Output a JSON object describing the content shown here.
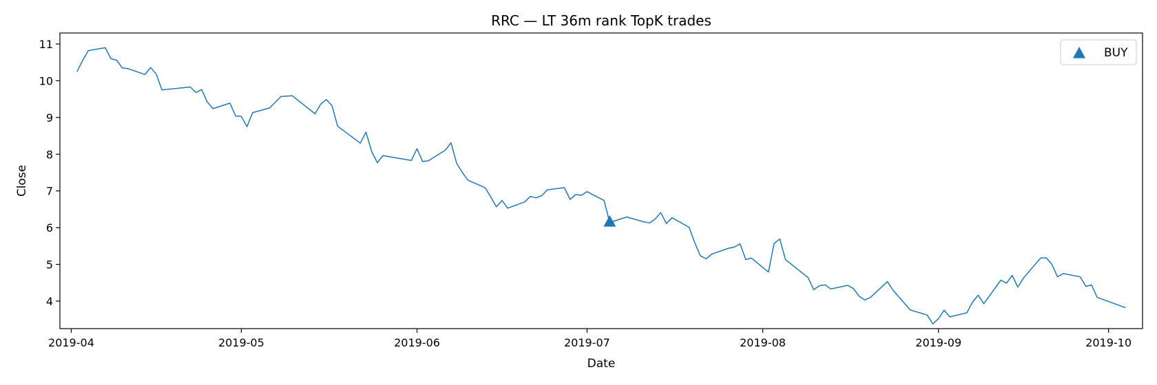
{
  "chart_data": {
    "type": "line",
    "title": "RRC — LT 36m rank TopK trades",
    "xlabel": "Date",
    "ylabel": "Close",
    "xlim": [
      "2019-03-30",
      "2019-10-07"
    ],
    "ylim": [
      3.25,
      11.3
    ],
    "x_ticks": [
      "2019-04-01",
      "2019-05-01",
      "2019-06-01",
      "2019-07-01",
      "2019-08-01",
      "2019-09-01",
      "2019-10-01"
    ],
    "x_tick_labels": [
      "2019-04",
      "2019-05",
      "2019-06",
      "2019-07",
      "2019-08",
      "2019-09",
      "2019-10"
    ],
    "y_ticks": [
      4,
      5,
      6,
      7,
      8,
      9,
      10,
      11
    ],
    "y_tick_labels": [
      "4",
      "5",
      "6",
      "7",
      "8",
      "9",
      "10",
      "11"
    ],
    "grid": false,
    "legend": {
      "position": "top-right",
      "entries": [
        {
          "label": "BUY",
          "marker": "triangle-up"
        }
      ]
    },
    "series": [
      {
        "color": "#1f77b4",
        "points": [
          [
            "2019-04-02",
            10.24
          ],
          [
            "2019-04-03",
            10.55
          ],
          [
            "2019-04-04",
            10.82
          ],
          [
            "2019-04-07",
            10.9
          ],
          [
            "2019-04-08",
            10.6
          ],
          [
            "2019-04-09",
            10.56
          ],
          [
            "2019-04-10",
            10.35
          ],
          [
            "2019-04-11",
            10.33
          ],
          [
            "2019-04-14",
            10.17
          ],
          [
            "2019-04-15",
            10.36
          ],
          [
            "2019-04-16",
            10.18
          ],
          [
            "2019-04-17",
            9.75
          ],
          [
            "2019-04-22",
            9.83
          ],
          [
            "2019-04-23",
            9.68
          ],
          [
            "2019-04-24",
            9.76
          ],
          [
            "2019-04-25",
            9.42
          ],
          [
            "2019-04-26",
            9.24
          ],
          [
            "2019-04-29",
            9.39
          ],
          [
            "2019-04-30",
            9.04
          ],
          [
            "2019-05-01",
            9.03
          ],
          [
            "2019-05-02",
            8.75
          ],
          [
            "2019-05-03",
            9.13
          ],
          [
            "2019-05-06",
            9.26
          ],
          [
            "2019-05-08",
            9.57
          ],
          [
            "2019-05-10",
            9.59
          ],
          [
            "2019-05-14",
            9.1
          ],
          [
            "2019-05-15",
            9.36
          ],
          [
            "2019-05-16",
            9.49
          ],
          [
            "2019-05-17",
            9.32
          ],
          [
            "2019-05-18",
            8.76
          ],
          [
            "2019-05-22",
            8.3
          ],
          [
            "2019-05-23",
            8.6
          ],
          [
            "2019-05-24",
            8.07
          ],
          [
            "2019-05-25",
            7.77
          ],
          [
            "2019-05-26",
            7.96
          ],
          [
            "2019-05-31",
            7.83
          ],
          [
            "2019-06-01",
            8.15
          ],
          [
            "2019-06-02",
            7.8
          ],
          [
            "2019-06-03",
            7.82
          ],
          [
            "2019-06-06",
            8.11
          ],
          [
            "2019-06-07",
            8.31
          ],
          [
            "2019-06-08",
            7.75
          ],
          [
            "2019-06-09",
            7.5
          ],
          [
            "2019-06-10",
            7.29
          ],
          [
            "2019-06-13",
            7.09
          ],
          [
            "2019-06-14",
            6.84
          ],
          [
            "2019-06-15",
            6.57
          ],
          [
            "2019-06-16",
            6.74
          ],
          [
            "2019-06-17",
            6.53
          ],
          [
            "2019-06-20",
            6.7
          ],
          [
            "2019-06-21",
            6.85
          ],
          [
            "2019-06-22",
            6.81
          ],
          [
            "2019-06-23",
            6.87
          ],
          [
            "2019-06-24",
            7.03
          ],
          [
            "2019-06-27",
            7.09
          ],
          [
            "2019-06-28",
            6.77
          ],
          [
            "2019-06-29",
            6.9
          ],
          [
            "2019-06-30",
            6.88
          ],
          [
            "2019-07-01",
            6.98
          ],
          [
            "2019-07-04",
            6.74
          ],
          [
            "2019-07-05",
            6.14
          ],
          [
            "2019-07-08",
            6.29
          ],
          [
            "2019-07-11",
            6.16
          ],
          [
            "2019-07-12",
            6.13
          ],
          [
            "2019-07-13",
            6.23
          ],
          [
            "2019-07-14",
            6.41
          ],
          [
            "2019-07-15",
            6.11
          ],
          [
            "2019-07-16",
            6.27
          ],
          [
            "2019-07-19",
            6.01
          ],
          [
            "2019-07-20",
            5.59
          ],
          [
            "2019-07-21",
            5.23
          ],
          [
            "2019-07-22",
            5.15
          ],
          [
            "2019-07-23",
            5.28
          ],
          [
            "2019-07-26",
            5.44
          ],
          [
            "2019-07-27",
            5.47
          ],
          [
            "2019-07-28",
            5.56
          ],
          [
            "2019-07-29",
            5.13
          ],
          [
            "2019-07-30",
            5.17
          ],
          [
            "2019-08-02",
            4.79
          ],
          [
            "2019-08-03",
            5.57
          ],
          [
            "2019-08-04",
            5.69
          ],
          [
            "2019-08-05",
            5.13
          ],
          [
            "2019-08-09",
            4.64
          ],
          [
            "2019-08-10",
            4.31
          ],
          [
            "2019-08-11",
            4.42
          ],
          [
            "2019-08-12",
            4.44
          ],
          [
            "2019-08-13",
            4.33
          ],
          [
            "2019-08-16",
            4.43
          ],
          [
            "2019-08-17",
            4.34
          ],
          [
            "2019-08-18",
            4.13
          ],
          [
            "2019-08-19",
            4.03
          ],
          [
            "2019-08-20",
            4.1
          ],
          [
            "2019-08-23",
            4.53
          ],
          [
            "2019-08-24",
            4.29
          ],
          [
            "2019-08-27",
            3.76
          ],
          [
            "2019-08-30",
            3.62
          ],
          [
            "2019-08-31",
            3.38
          ],
          [
            "2019-09-01",
            3.52
          ],
          [
            "2019-09-02",
            3.75
          ],
          [
            "2019-09-03",
            3.57
          ],
          [
            "2019-09-06",
            3.68
          ],
          [
            "2019-09-07",
            3.97
          ],
          [
            "2019-09-08",
            4.16
          ],
          [
            "2019-09-09",
            3.93
          ],
          [
            "2019-09-12",
            4.57
          ],
          [
            "2019-09-13",
            4.49
          ],
          [
            "2019-09-14",
            4.7
          ],
          [
            "2019-09-15",
            4.38
          ],
          [
            "2019-09-16",
            4.63
          ],
          [
            "2019-09-19",
            5.17
          ],
          [
            "2019-09-20",
            5.18
          ],
          [
            "2019-09-21",
            5.0
          ],
          [
            "2019-09-22",
            4.66
          ],
          [
            "2019-09-23",
            4.75
          ],
          [
            "2019-09-26",
            4.66
          ],
          [
            "2019-09-27",
            4.4
          ],
          [
            "2019-09-28",
            4.44
          ],
          [
            "2019-09-29",
            4.1
          ],
          [
            "2019-10-04",
            3.82
          ]
        ]
      }
    ],
    "markers": [
      {
        "label": "BUY",
        "date": "2019-07-05",
        "value": 6.17,
        "shape": "triangle-up",
        "color": "#1f77b4"
      }
    ]
  }
}
